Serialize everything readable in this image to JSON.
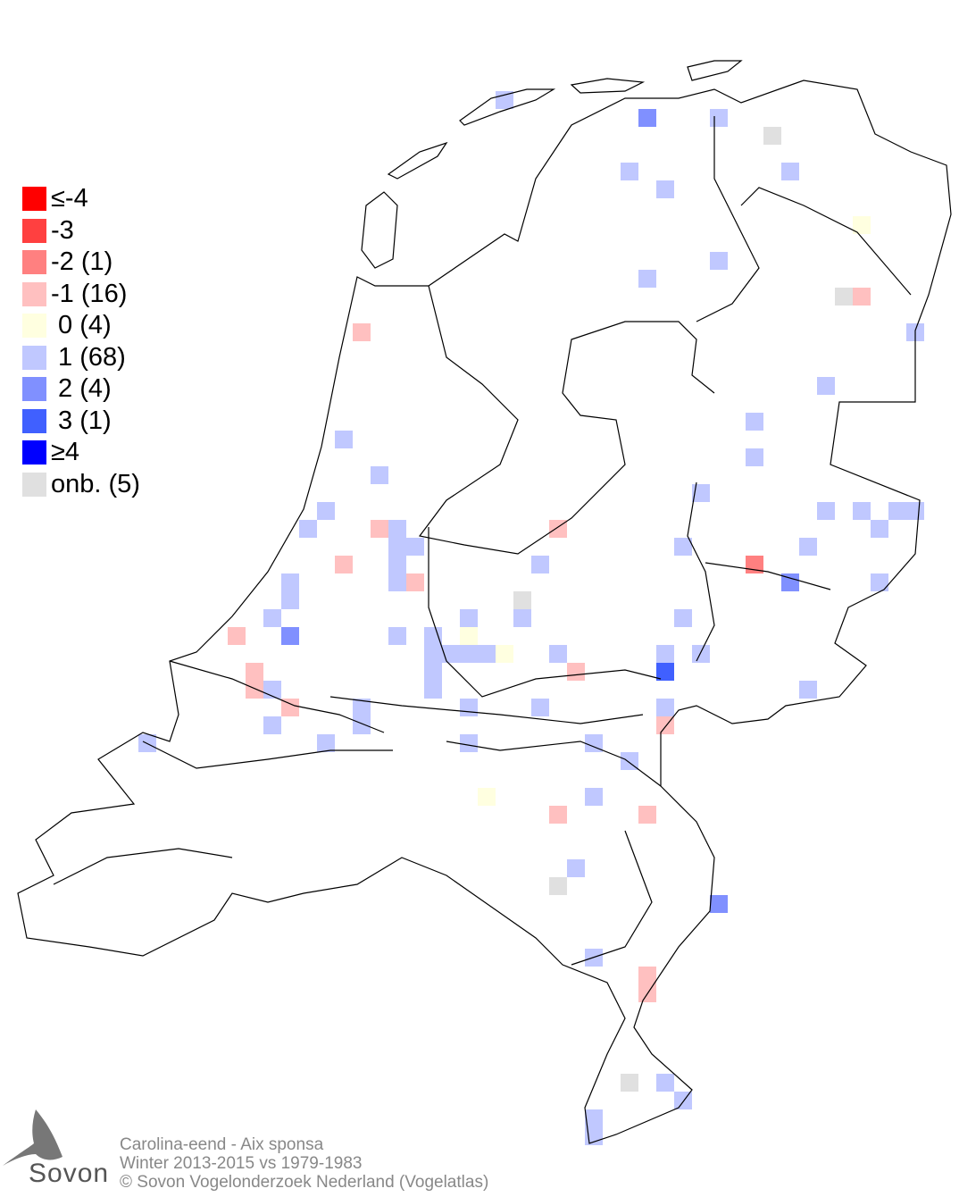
{
  "legend": [
    {
      "label": "≤-4",
      "color": "#ff0000"
    },
    {
      "label": "-3",
      "color": "#ff4040"
    },
    {
      "label": "-2 (1)",
      "color": "#ff8080"
    },
    {
      "label": "-1 (16)",
      "color": "#ffc0c0"
    },
    {
      "label": " 0 (4)",
      "color": "#ffffe0"
    },
    {
      "label": " 1 (68)",
      "color": "#c0c8ff"
    },
    {
      "label": " 2 (4)",
      "color": "#8090ff"
    },
    {
      "label": " 3 (1)",
      "color": "#4060ff"
    },
    {
      "label": "≥4",
      "color": "#0000ff"
    },
    {
      "label": "onb. (5)",
      "color": "#e0e0e0"
    }
  ],
  "footer": {
    "species": "Carolina-eend - Aix sponsa",
    "period": "Winter 2013-2015 vs 1979-1983",
    "copyright": "© Sovon Vogelonderzoek Nederland (Vogelatlas)"
  },
  "logo": {
    "text": "Sovon"
  }
}
